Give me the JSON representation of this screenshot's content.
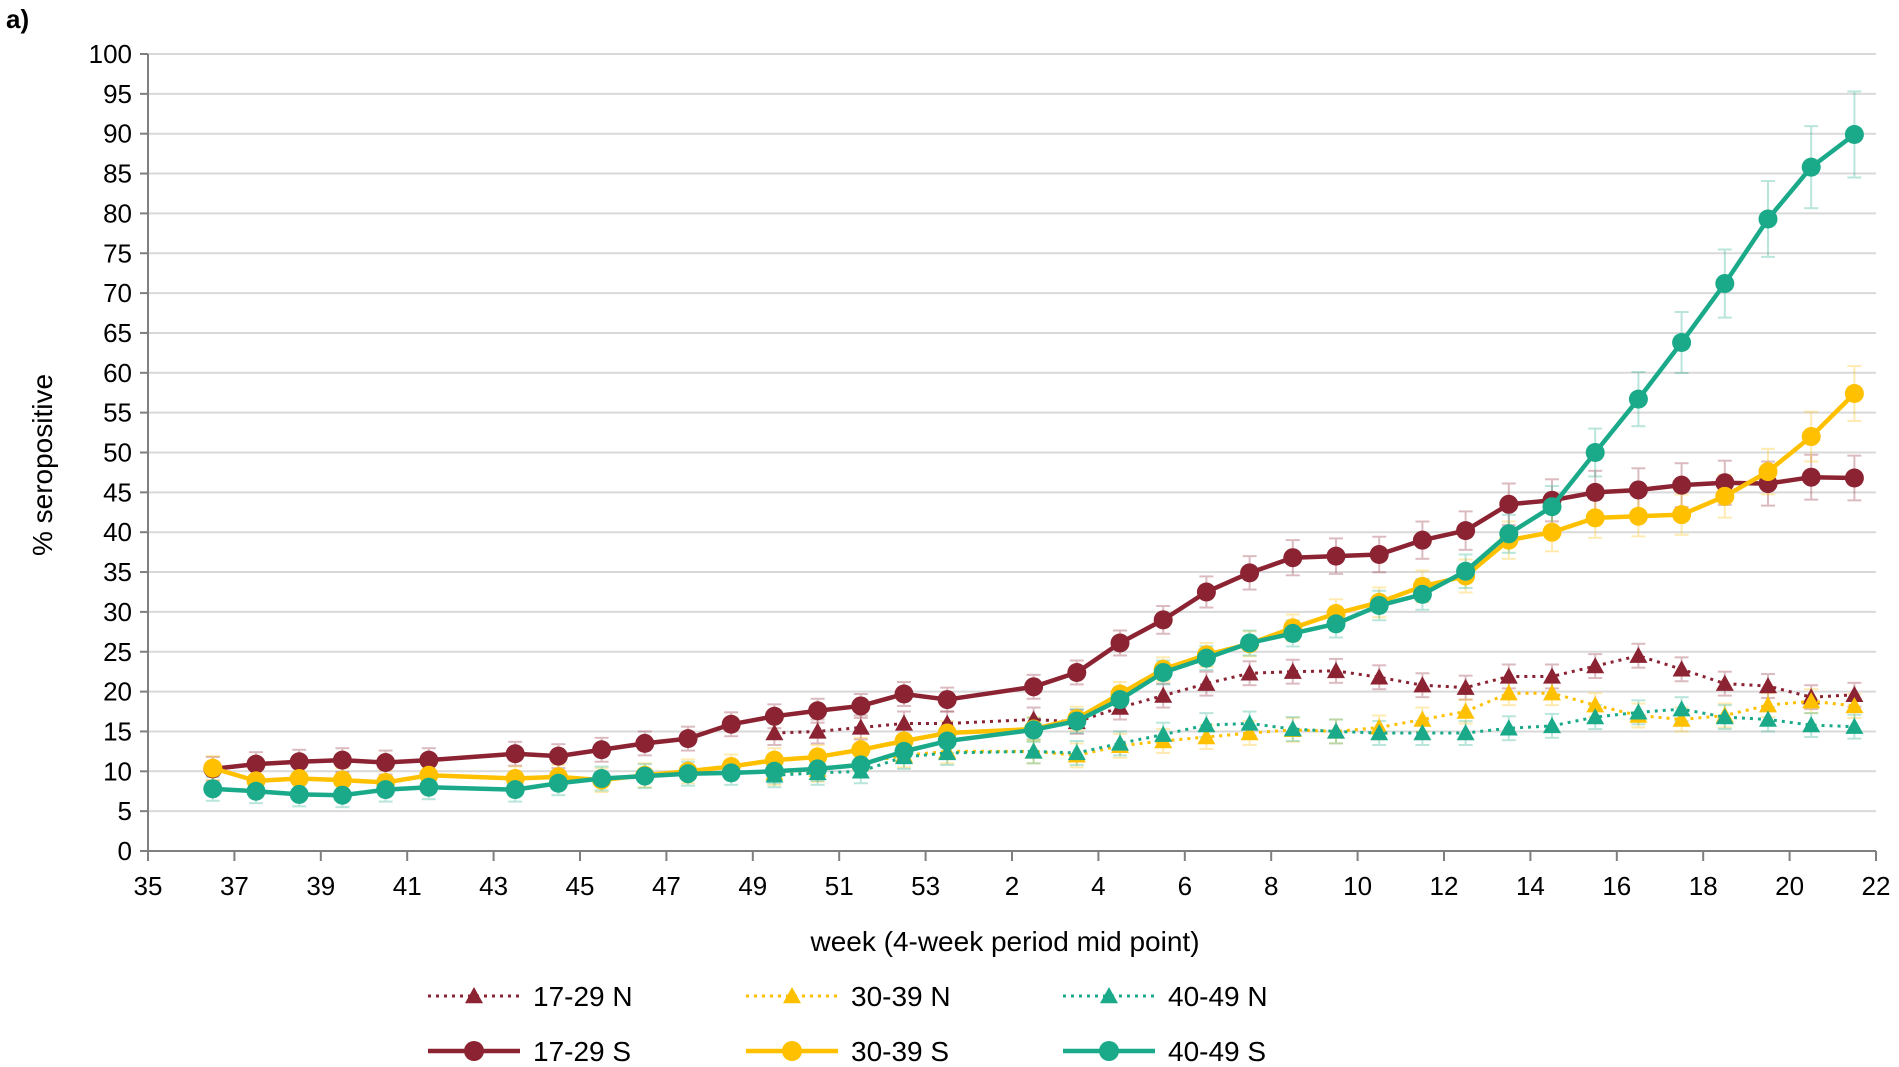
{
  "panel_label": "a)",
  "chart_data": {
    "type": "line",
    "title": "",
    "xlabel": "week (4-week period mid point)",
    "ylabel": "% seropositive",
    "ylim": [
      0,
      100
    ],
    "yticks": [
      0,
      5,
      10,
      15,
      20,
      25,
      30,
      35,
      40,
      45,
      50,
      55,
      60,
      65,
      70,
      75,
      80,
      85,
      90,
      95,
      100
    ],
    "xlim": [
      35,
      22
    ],
    "xtick_labels": [
      "35",
      "37",
      "39",
      "41",
      "43",
      "45",
      "47",
      "49",
      "51",
      "53",
      "2",
      "4",
      "6",
      "8",
      "10",
      "12",
      "14",
      "16",
      "18",
      "20",
      "22"
    ],
    "grid": "horizontal",
    "legend_position": "bottom",
    "series": [
      {
        "name": "17-29 N",
        "color": "#8b2332",
        "style": "dotted",
        "marker": "triangle",
        "x": [
          49.5,
          50.5,
          51.5,
          52.5,
          53.5,
          1.5,
          2.5,
          3.5,
          4.5,
          5.5,
          6.5,
          7.5,
          8.5,
          9.5,
          10.5,
          11.5,
          12.5,
          13.5,
          14.5,
          15.5,
          16.5,
          17.5,
          18.5,
          19.5,
          20.5
        ],
        "y": [
          14.8,
          15.0,
          15.5,
          16.0,
          16.0,
          16.5,
          16.2,
          18.0,
          19.5,
          21.0,
          22.3,
          22.5,
          22.6,
          21.8,
          20.8,
          20.5,
          21.9,
          21.9,
          23.2,
          24.5,
          22.8,
          21.0,
          20.7,
          19.3,
          19.6
        ]
      },
      {
        "name": "30-39 N",
        "color": "#ffc000",
        "style": "dotted",
        "marker": "triangle",
        "x": [
          49.5,
          50.5,
          51.5,
          52.5,
          53.5,
          1.5,
          2.5,
          3.5,
          4.5,
          5.5,
          6.5,
          7.5,
          8.5,
          9.5,
          10.5,
          11.5,
          12.5,
          13.5,
          14.5,
          15.5,
          16.5,
          17.5,
          18.5,
          19.5,
          20.5
        ],
        "y": [
          9.8,
          10.2,
          11.0,
          12.0,
          12.5,
          12.5,
          12.0,
          13.2,
          13.8,
          14.3,
          14.8,
          15.2,
          15.0,
          15.5,
          16.5,
          17.5,
          19.8,
          19.8,
          18.3,
          17.0,
          16.5,
          17.0,
          18.3,
          18.8,
          18.2
        ]
      },
      {
        "name": "40-49 N",
        "color": "#1aaa8a",
        "style": "dotted",
        "marker": "triangle",
        "x": [
          49.5,
          50.5,
          51.5,
          52.5,
          53.5,
          1.5,
          2.5,
          3.5,
          4.5,
          5.5,
          6.5,
          7.5,
          8.5,
          9.5,
          10.5,
          11.5,
          12.5,
          13.5,
          14.5,
          15.5,
          16.5,
          17.5,
          18.5,
          19.5,
          20.5
        ],
        "y": [
          9.5,
          9.8,
          10.0,
          11.8,
          12.3,
          12.5,
          12.3,
          13.5,
          14.6,
          15.8,
          16.0,
          15.3,
          15.0,
          14.8,
          14.8,
          14.8,
          15.4,
          15.7,
          16.8,
          17.4,
          17.8,
          16.8,
          16.5,
          15.8,
          15.6
        ]
      },
      {
        "name": "17-29 S",
        "color": "#8b2332",
        "style": "solid",
        "marker": "circle",
        "x": [
          36.5,
          37.5,
          38.5,
          39.5,
          40.5,
          41.5,
          43.5,
          44.5,
          45.5,
          46.5,
          47.5,
          48.5,
          49.5,
          50.5,
          51.5,
          52.5,
          53.5,
          1.5,
          2.5,
          3.5,
          4.5,
          5.5,
          6.5,
          7.5,
          8.5,
          9.5,
          10.5,
          11.5,
          12.5,
          13.5,
          14.5,
          15.5,
          16.5,
          17.5,
          18.5,
          19.5,
          20.5
        ],
        "y": [
          10.3,
          10.9,
          11.2,
          11.4,
          11.1,
          11.4,
          12.2,
          11.9,
          12.7,
          13.5,
          14.1,
          15.9,
          16.9,
          17.6,
          18.2,
          19.7,
          19.0,
          20.6,
          22.4,
          26.1,
          29.0,
          32.5,
          34.9,
          36.8,
          37.0,
          37.2,
          39.0,
          40.2,
          43.5,
          44.0,
          45.0,
          45.3,
          45.9,
          46.2,
          46.1,
          46.9,
          46.8
        ]
      },
      {
        "name": "30-39 S",
        "color": "#ffc000",
        "style": "solid",
        "marker": "circle",
        "x": [
          36.5,
          37.5,
          38.5,
          39.5,
          40.5,
          41.5,
          43.5,
          44.5,
          45.5,
          46.5,
          47.5,
          48.5,
          49.5,
          50.5,
          51.5,
          52.5,
          53.5,
          1.5,
          2.5,
          3.5,
          4.5,
          5.5,
          6.5,
          7.5,
          8.5,
          9.5,
          10.5,
          11.5,
          12.5,
          13.5,
          14.5,
          15.5,
          16.5,
          17.5,
          18.5,
          19.5,
          20.5
        ],
        "y": [
          10.4,
          8.8,
          9.1,
          8.9,
          8.6,
          9.5,
          9.1,
          9.3,
          8.9,
          9.5,
          10.0,
          10.6,
          11.4,
          11.8,
          12.7,
          13.8,
          14.8,
          15.3,
          16.6,
          19.7,
          22.8,
          24.6,
          26.0,
          28.0,
          29.8,
          31.2,
          33.2,
          34.5,
          39.0,
          40.0,
          41.8,
          42.0,
          42.2,
          44.5,
          47.6,
          52.0,
          57.4
        ]
      },
      {
        "name": "40-49 S",
        "color": "#1aaa8a",
        "style": "solid",
        "marker": "circle",
        "x": [
          36.5,
          37.5,
          38.5,
          39.5,
          40.5,
          41.5,
          43.5,
          44.5,
          45.5,
          46.5,
          47.5,
          48.5,
          49.5,
          50.5,
          51.5,
          52.5,
          53.5,
          1.5,
          2.5,
          3.5,
          4.5,
          5.5,
          6.5,
          7.5,
          8.5,
          9.5,
          10.5,
          11.5,
          12.5,
          13.5,
          14.5,
          15.5,
          16.5,
          17.5,
          18.5,
          19.5,
          20.5
        ],
        "y": [
          7.8,
          7.5,
          7.1,
          7.0,
          7.7,
          8.0,
          7.7,
          8.5,
          9.1,
          9.4,
          9.7,
          9.8,
          10.0,
          10.3,
          10.8,
          12.5,
          13.8,
          15.2,
          16.3,
          19.0,
          22.4,
          24.2,
          26.1,
          27.3,
          28.5,
          30.8,
          32.2,
          35.1,
          39.8,
          43.2,
          50.0,
          56.7,
          63.8,
          71.2,
          79.3,
          85.8,
          89.9
        ]
      }
    ]
  }
}
